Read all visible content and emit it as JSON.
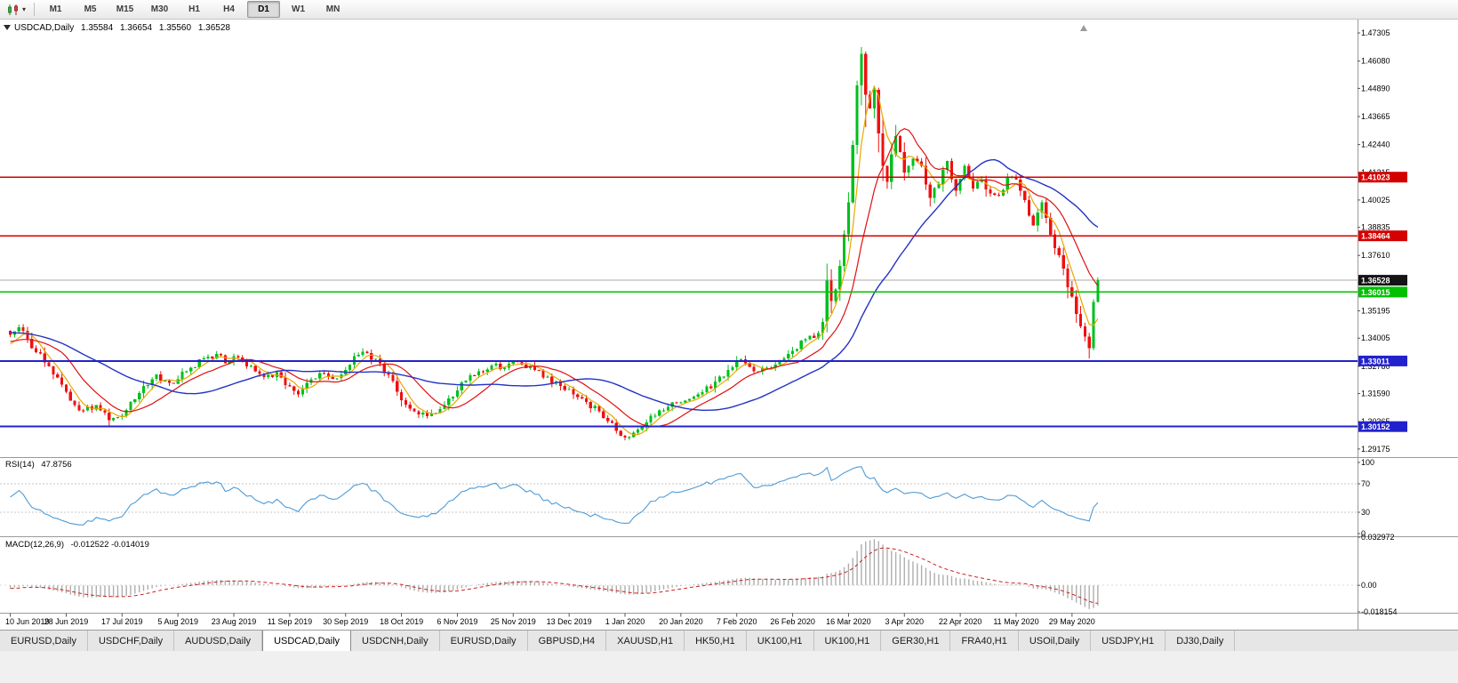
{
  "toolbar": {
    "timeframes": [
      "M1",
      "M5",
      "M15",
      "M30",
      "H1",
      "H4",
      "D1",
      "W1",
      "MN"
    ],
    "active": "D1"
  },
  "chart_data": {
    "type": "candlestick",
    "title": {
      "symbol": "USDCAD,Daily",
      "open": "1.35584",
      "high": "1.36654",
      "low": "1.35560",
      "close": "1.36528"
    },
    "candle_count": 254,
    "x_axis": {
      "labels": [
        "10 Jun 2019",
        "28 Jun 2019",
        "17 Jul 2019",
        "5 Aug 2019",
        "23 Aug 2019",
        "11 Sep 2019",
        "30 Sep 2019",
        "18 Oct 2019",
        "6 Nov 2019",
        "25 Nov 2019",
        "13 Dec 2019",
        "1 Jan 2020",
        "20 Jan 2020",
        "7 Feb 2020",
        "26 Feb 2020",
        "16 Mar 2020",
        "3 Apr 2020",
        "22 Apr 2020",
        "11 May 2020",
        "29 May 2020"
      ],
      "label_indices": [
        0,
        13,
        26,
        39,
        52,
        65,
        78,
        91,
        104,
        117,
        130,
        143,
        156,
        169,
        182,
        195,
        208,
        221,
        234,
        247
      ]
    },
    "y_axis": {
      "min": 1.2886,
      "max": 1.4785,
      "ticks": [
        "1.47305",
        "1.46080",
        "1.44890",
        "1.43665",
        "1.42440",
        "1.41215",
        "1.40025",
        "1.38835",
        "1.37610",
        "1.36420",
        "1.35195",
        "1.34005",
        "1.32780",
        "1.31590",
        "1.30365",
        "1.29175"
      ]
    },
    "close_waypoints": [
      [
        0,
        1.3415
      ],
      [
        2,
        1.3448
      ],
      [
        4,
        1.3398
      ],
      [
        6,
        1.334
      ],
      [
        9,
        1.3278
      ],
      [
        12,
        1.3198
      ],
      [
        14,
        1.3128
      ],
      [
        17,
        1.3085
      ],
      [
        20,
        1.3108
      ],
      [
        23,
        1.3042
      ],
      [
        26,
        1.3062
      ],
      [
        28,
        1.3122
      ],
      [
        31,
        1.3192
      ],
      [
        34,
        1.3242
      ],
      [
        37,
        1.3205
      ],
      [
        39,
        1.3222
      ],
      [
        42,
        1.3272
      ],
      [
        45,
        1.3312
      ],
      [
        48,
        1.3332
      ],
      [
        50,
        1.329
      ],
      [
        53,
        1.3316
      ],
      [
        56,
        1.328
      ],
      [
        59,
        1.323
      ],
      [
        62,
        1.3252
      ],
      [
        65,
        1.319
      ],
      [
        67,
        1.3155
      ],
      [
        70,
        1.3222
      ],
      [
        73,
        1.3246
      ],
      [
        76,
        1.3226
      ],
      [
        78,
        1.3262
      ],
      [
        80,
        1.3322
      ],
      [
        83,
        1.3336
      ],
      [
        86,
        1.329
      ],
      [
        88,
        1.324
      ],
      [
        91,
        1.313
      ],
      [
        94,
        1.3082
      ],
      [
        97,
        1.306
      ],
      [
        100,
        1.3092
      ],
      [
        103,
        1.3146
      ],
      [
        106,
        1.3216
      ],
      [
        109,
        1.3256
      ],
      [
        112,
        1.3282
      ],
      [
        115,
        1.3272
      ],
      [
        117,
        1.3302
      ],
      [
        119,
        1.3286
      ],
      [
        122,
        1.3262
      ],
      [
        125,
        1.3232
      ],
      [
        128,
        1.3192
      ],
      [
        131,
        1.3156
      ],
      [
        134,
        1.3122
      ],
      [
        137,
        1.3082
      ],
      [
        140,
        1.3032
      ],
      [
        143,
        1.2968
      ],
      [
        146,
        1.3002
      ],
      [
        149,
        1.3062
      ],
      [
        152,
        1.3086
      ],
      [
        155,
        1.3116
      ],
      [
        158,
        1.3136
      ],
      [
        161,
        1.3166
      ],
      [
        164,
        1.3212
      ],
      [
        167,
        1.3262
      ],
      [
        169,
        1.3302
      ],
      [
        171,
        1.3292
      ],
      [
        174,
        1.3256
      ],
      [
        177,
        1.3272
      ],
      [
        180,
        1.3312
      ],
      [
        182,
        1.3346
      ],
      [
        185,
        1.3396
      ],
      [
        188,
        1.3422
      ],
      [
        189,
        1.3472
      ],
      [
        190,
        1.3652
      ],
      [
        191,
        1.3562
      ],
      [
        192,
        1.3612
      ],
      [
        193,
        1.3716
      ],
      [
        194,
        1.3852
      ],
      [
        195,
        1.3992
      ],
      [
        196,
        1.4242
      ],
      [
        197,
        1.4502
      ],
      [
        198,
        1.464
      ],
      [
        199,
        1.4462
      ],
      [
        200,
        1.4402
      ],
      [
        201,
        1.4482
      ],
      [
        202,
        1.4292
      ],
      [
        203,
        1.4152
      ],
      [
        204,
        1.4082
      ],
      [
        205,
        1.4202
      ],
      [
        206,
        1.4282
      ],
      [
        207,
        1.4212
      ],
      [
        208,
        1.4122
      ],
      [
        210,
        1.4182
      ],
      [
        212,
        1.4152
      ],
      [
        214,
        1.4012
      ],
      [
        216,
        1.4072
      ],
      [
        218,
        1.4172
      ],
      [
        220,
        1.4042
      ],
      [
        222,
        1.4152
      ],
      [
        224,
        1.4052
      ],
      [
        226,
        1.4092
      ],
      [
        228,
        1.4032
      ],
      [
        230,
        1.4022
      ],
      [
        232,
        1.4102
      ],
      [
        234,
        1.4092
      ],
      [
        236,
        1.4002
      ],
      [
        238,
        1.3892
      ],
      [
        240,
        1.3992
      ],
      [
        242,
        1.3852
      ],
      [
        244,
        1.3762
      ],
      [
        246,
        1.3622
      ],
      [
        247,
        1.3582
      ],
      [
        248,
        1.3506
      ],
      [
        249,
        1.3452
      ],
      [
        250,
        1.3408
      ],
      [
        251,
        1.3356
      ],
      [
        252,
        1.3558
      ],
      [
        253,
        1.36528
      ]
    ],
    "pinned_candles": {
      "198": [
        1.4502,
        1.4669,
        1.4415,
        1.464
      ],
      "199": [
        1.464,
        1.465,
        1.432,
        1.4462
      ],
      "251": [
        1.3408,
        1.3424,
        1.3312,
        1.3356
      ],
      "252": [
        1.3356,
        1.357,
        1.3348,
        1.3558
      ],
      "253": [
        1.35584,
        1.36654,
        1.3556,
        1.36528
      ]
    },
    "levels": [
      {
        "price": 1.41023,
        "label": "1.41023",
        "color": "#d40000",
        "width": 1.4
      },
      {
        "price": 1.38464,
        "label": "1.38464",
        "color": "#d40000",
        "width": 1.4
      },
      {
        "price": 1.36015,
        "label": "1.36015",
        "color": "#00c000",
        "width": 1.6
      },
      {
        "price": 1.33011,
        "label": "1.33011",
        "color": "#2222cc",
        "width": 2
      },
      {
        "price": 1.30152,
        "label": "1.30152",
        "color": "#2222cc",
        "width": 2
      }
    ],
    "current_price": {
      "value": 1.36528,
      "label": "1.36528"
    },
    "moving_averages": [
      {
        "period": 5,
        "color": "#e8a800",
        "width": 1.2
      },
      {
        "period": 13,
        "color": "#e01010",
        "width": 1.2
      },
      {
        "period": 34,
        "color": "#2433c4",
        "width": 1.4
      }
    ],
    "indicators": {
      "rsi": {
        "label": "RSI(14)",
        "value": "47.8756",
        "period": 14,
        "color": "#4f9bd5",
        "levels_dotted": [
          70,
          30
        ],
        "axis": [
          {
            "v": 100,
            "label": "100"
          },
          {
            "v": 70,
            "label": "70"
          },
          {
            "v": 30,
            "label": "30"
          },
          {
            "v": 0,
            "label": "0"
          }
        ]
      },
      "macd": {
        "label": "MACD(12,26,9)",
        "values": "-0.012522 -0.014019",
        "fast": 12,
        "slow": 26,
        "signal_period": 9,
        "range": [
          -0.018154,
          0.032972
        ],
        "axis": [
          {
            "v": 0.032972,
            "label": "0.032972"
          },
          {
            "v": 0,
            "label": "0.00"
          },
          {
            "v": -0.018154,
            "label": "-0.018154"
          }
        ]
      }
    },
    "colors": {
      "up": "#00bf1d",
      "down": "#ef1010",
      "rsi": "#4f9bd5",
      "macd_hist": "#aeaeae",
      "macd_signal": "#cc2222",
      "current_line": "#a9a9a9",
      "badge_current": "#141414"
    }
  },
  "tabs": [
    {
      "label": "EURUSD,Daily",
      "active": false
    },
    {
      "label": "USDCHF,Daily",
      "active": false
    },
    {
      "label": "AUDUSD,Daily",
      "active": false
    },
    {
      "label": "USDCAD,Daily",
      "active": true
    },
    {
      "label": "USDCNH,Daily",
      "active": false
    },
    {
      "label": "EURUSD,Daily",
      "active": false
    },
    {
      "label": "GBPUSD,H4",
      "active": false
    },
    {
      "label": "XAUUSD,H1",
      "active": false
    },
    {
      "label": "HK50,H1",
      "active": false
    },
    {
      "label": "UK100,H1",
      "active": false
    },
    {
      "label": "UK100,H1",
      "active": false
    },
    {
      "label": "GER30,H1",
      "active": false
    },
    {
      "label": "FRA40,H1",
      "active": false
    },
    {
      "label": "USOil,Daily",
      "active": false
    },
    {
      "label": "USDJPY,H1",
      "active": false
    },
    {
      "label": "DJ30,Daily",
      "active": false
    }
  ]
}
